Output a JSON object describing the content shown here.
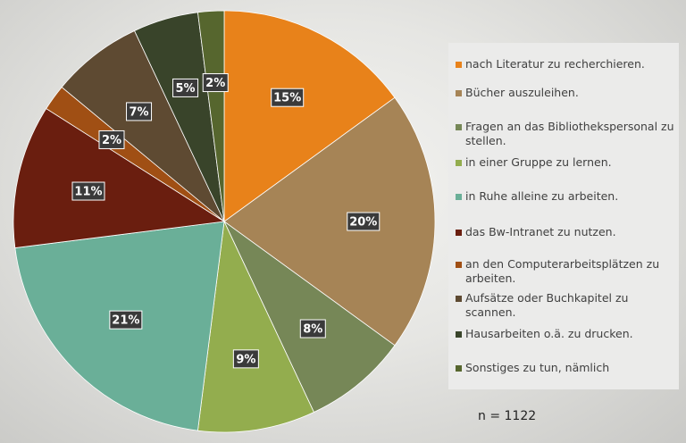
{
  "chart_data": {
    "type": "pie",
    "title": "",
    "slices": [
      {
        "label": "nach Literatur zu recherchieren.",
        "value": 15,
        "display": "15%",
        "color": "#e8821a"
      },
      {
        "label": "Bücher auszuleihen.",
        "value": 20,
        "display": "20%",
        "color": "#a68456"
      },
      {
        "label": "Fragen an das Bibliothekspersonal zu stellen.",
        "value": 8,
        "display": "8%",
        "color": "#768757"
      },
      {
        "label": "in einer Gruppe zu lernen.",
        "value": 9,
        "display": "9%",
        "color": "#93ad4e"
      },
      {
        "label": "in Ruhe alleine zu arbeiten.",
        "value": 21,
        "display": "21%",
        "color": "#6aaf98"
      },
      {
        "label": "das Bw-Intranet zu nutzen.",
        "value": 11,
        "display": "11%",
        "color": "#6a1e0f"
      },
      {
        "label": "an den Computerarbeitsplätzen zu arbeiten.",
        "value": 2,
        "display": "2%",
        "color": "#a04f14"
      },
      {
        "label": "Aufsätze oder Buchkapitel zu scannen.",
        "value": 7,
        "display": "7%",
        "color": "#5e4a32"
      },
      {
        "label": "Hausarbeiten o.ä. zu drucken.",
        "value": 5,
        "display": "5%",
        "color": "#39442a"
      },
      {
        "label": "Sonstiges zu tun, nämlich",
        "value": 2,
        "display": "2%",
        "color": "#56662e"
      }
    ],
    "legend_position": "right"
  },
  "footnote": "n = 1122"
}
